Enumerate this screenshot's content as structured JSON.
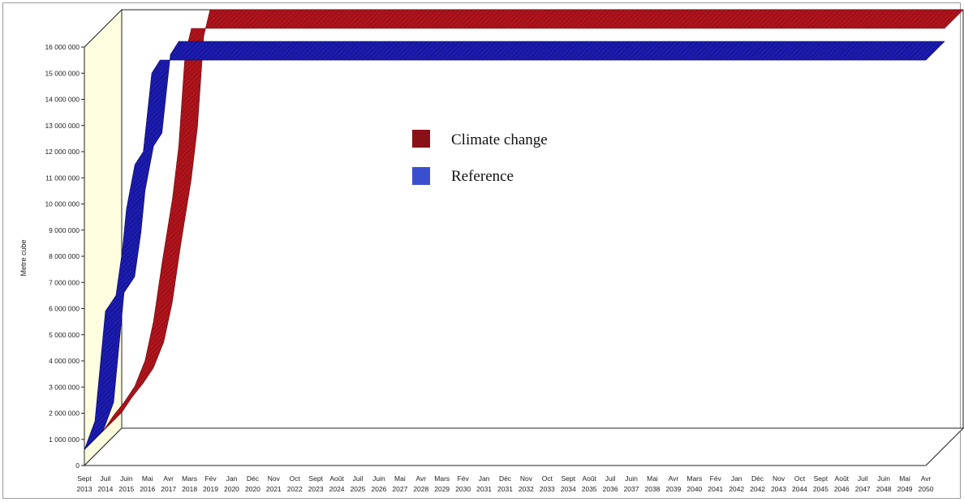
{
  "chart_data": {
    "type": "area",
    "ylabel": "Metre cube",
    "ylim": [
      0,
      16000000
    ],
    "yticks": [
      "0",
      "1 000 000",
      "2 000 000",
      "3 000 000",
      "4 000 000",
      "5 000 000",
      "6 000 000",
      "7 000 000",
      "8 000 000",
      "9 000 000",
      "10 000 000",
      "11 000 000",
      "12 000 000",
      "13 000 000",
      "14 000 000",
      "15 000 000",
      "16 000 000"
    ],
    "categories": [
      [
        "Sept",
        "2013"
      ],
      [
        "Juil",
        "2014"
      ],
      [
        "Juin",
        "2015"
      ],
      [
        "Mai",
        "2016"
      ],
      [
        "Avr",
        "2017"
      ],
      [
        "Mars",
        "2018"
      ],
      [
        "Fév",
        "2019"
      ],
      [
        "Jan",
        "2020"
      ],
      [
        "Déc",
        "2020"
      ],
      [
        "Nov",
        "2021"
      ],
      [
        "Oct",
        "2022"
      ],
      [
        "Sept",
        "2023"
      ],
      [
        "Août",
        "2024"
      ],
      [
        "Juil",
        "2025"
      ],
      [
        "Juin",
        "2026"
      ],
      [
        "Mai",
        "2027"
      ],
      [
        "Avr",
        "2028"
      ],
      [
        "Mars",
        "2029"
      ],
      [
        "Fév",
        "2030"
      ],
      [
        "Jan",
        "2031"
      ],
      [
        "Déc",
        "2031"
      ],
      [
        "Nov",
        "2032"
      ],
      [
        "Oct",
        "2033"
      ],
      [
        "Sept",
        "2034"
      ],
      [
        "Août",
        "2035"
      ],
      [
        "Juil",
        "2036"
      ],
      [
        "Juin",
        "2037"
      ],
      [
        "Mai",
        "2038"
      ],
      [
        "Avr",
        "2039"
      ],
      [
        "Mars",
        "2040"
      ],
      [
        "Fév",
        "2041"
      ],
      [
        "Jan",
        "2042"
      ],
      [
        "Déc",
        "2042"
      ],
      [
        "Nov",
        "2043"
      ],
      [
        "Oct",
        "2044"
      ],
      [
        "Sept",
        "2045"
      ],
      [
        "Août",
        "2046"
      ],
      [
        "Juil",
        "2047"
      ],
      [
        "Juin",
        "2048"
      ],
      [
        "Mai",
        "2049"
      ],
      [
        "Avr",
        "2050"
      ]
    ],
    "series": [
      {
        "name": "Climate change",
        "color": "#a01018",
        "points": [
          [
            0,
            600000
          ],
          [
            0.5,
            1200000
          ],
          [
            1.0,
            1700000
          ],
          [
            1.5,
            2300000
          ],
          [
            2.0,
            3300000
          ],
          [
            2.4,
            4800000
          ],
          [
            2.8,
            7000000
          ],
          [
            3.0,
            8000000
          ],
          [
            3.3,
            9500000
          ],
          [
            3.6,
            11500000
          ],
          [
            3.9,
            15000000
          ],
          [
            4.2,
            16000000
          ],
          [
            40,
            16000000
          ]
        ]
      },
      {
        "name": "Reference",
        "color": "#1a1aa8",
        "points": [
          [
            0,
            600000
          ],
          [
            0.5,
            1700000
          ],
          [
            1.0,
            5900000
          ],
          [
            1.5,
            6500000
          ],
          [
            1.8,
            8200000
          ],
          [
            2.0,
            9800000
          ],
          [
            2.4,
            11500000
          ],
          [
            2.8,
            12000000
          ],
          [
            3.2,
            15000000
          ],
          [
            3.6,
            15500000
          ],
          [
            40,
            15500000
          ]
        ]
      }
    ],
    "legend": {
      "position": "top-center",
      "items": [
        {
          "label": "Climate change",
          "color": "#8a1018"
        },
        {
          "label": "Reference",
          "color": "#3a4fd0"
        }
      ]
    },
    "grid": false,
    "style": "3d-ribbon"
  }
}
